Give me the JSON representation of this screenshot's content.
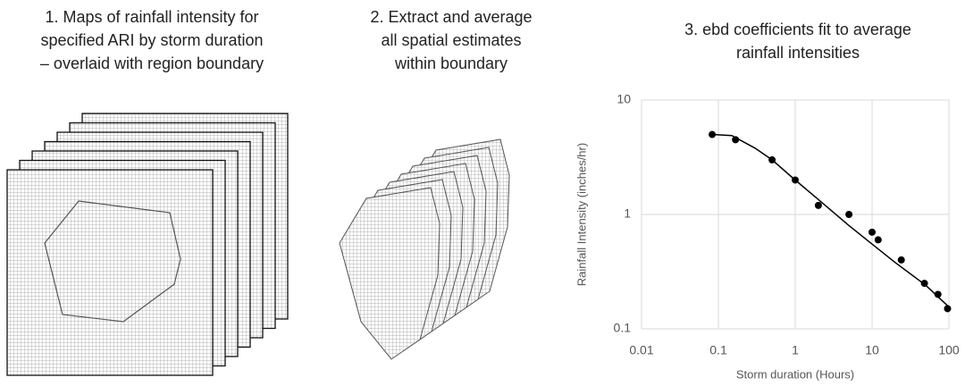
{
  "panels": [
    {
      "title": [
        "1. Maps of rainfall intensity for",
        "specified ARI by storm duration",
        "– overlaid with region boundary"
      ]
    },
    {
      "title": [
        "2. Extract  and average",
        "all spatial estimates",
        "within boundary"
      ]
    }
  ],
  "chart_data": {
    "type": "scatter",
    "title": [
      "3. ebd coefficients fit to average",
      "rainfall intensities"
    ],
    "x_label": "Storm duration (Hours)",
    "y_label": "Rainfall Intensity (inches/hr)",
    "x": [
      0.083,
      0.167,
      0.5,
      1,
      2,
      5,
      10,
      12,
      24,
      48,
      72,
      96
    ],
    "values": [
      5,
      4.5,
      3,
      2,
      1.2,
      1,
      0.7,
      0.6,
      0.4,
      0.25,
      0.2,
      0.15
    ],
    "color": "#000000",
    "fit_line": {
      "x": [
        0.083,
        0.15,
        0.3,
        0.5,
        1,
        2,
        5,
        10,
        20,
        50,
        100
      ],
      "values": [
        5.0,
        4.9,
        3.8,
        3.0,
        2.0,
        1.35,
        0.8,
        0.55,
        0.38,
        0.24,
        0.155
      ]
    },
    "x_log": true,
    "y_log": true,
    "xlim": [
      0.01,
      100
    ],
    "ylim": [
      0.1,
      10
    ],
    "xticks": [
      0.01,
      0.1,
      1,
      10,
      100
    ],
    "yticks": [
      0.1,
      1,
      10
    ],
    "grid": true
  }
}
